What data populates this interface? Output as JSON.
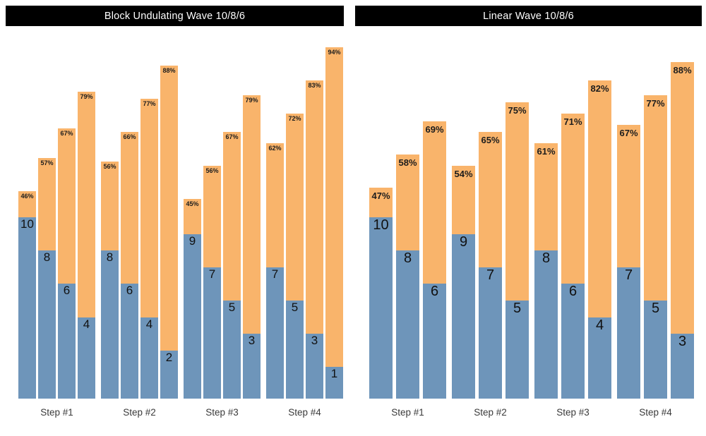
{
  "colors": {
    "reps_blue": "#6e95ba",
    "intensity_orange": "#f9b46b",
    "title_bar_bg": "#000000",
    "title_text": "#ffffff",
    "category_label_gray": "#3a3a3a"
  },
  "chart_data": [
    {
      "type": "bar",
      "subtype": "stacked",
      "title": "Block Undulating Wave 10/8/6",
      "legend_position": "none",
      "grid": false,
      "axes_visible": false,
      "series_names": [
        "reps (blue segment, label inside)",
        "intensity percent (orange segment, label at top)"
      ],
      "categories": [
        "Step #1",
        "Step #2",
        "Step #3",
        "Step #4"
      ],
      "pct_label_suffix": "%",
      "groups": [
        [
          {
            "reps": 10,
            "pct": 46
          },
          {
            "reps": 8,
            "pct": 57
          },
          {
            "reps": 6,
            "pct": 67
          },
          {
            "reps": 4,
            "pct": 79
          }
        ],
        [
          {
            "reps": 8,
            "pct": 56
          },
          {
            "reps": 6,
            "pct": 66
          },
          {
            "reps": 4,
            "pct": 77
          },
          {
            "reps": 2,
            "pct": 88
          }
        ],
        [
          {
            "reps": 9,
            "pct": 45
          },
          {
            "reps": 7,
            "pct": 56
          },
          {
            "reps": 5,
            "pct": 67
          },
          {
            "reps": 3,
            "pct": 79
          }
        ],
        [
          {
            "reps": 7,
            "pct": 62
          },
          {
            "reps": 5,
            "pct": 72
          },
          {
            "reps": 3,
            "pct": 83
          },
          {
            "reps": 1,
            "pct": 94
          }
        ]
      ]
    },
    {
      "type": "bar",
      "subtype": "stacked",
      "title": "Linear Wave 10/8/6",
      "legend_position": "none",
      "grid": false,
      "axes_visible": false,
      "series_names": [
        "reps (blue segment, label inside)",
        "intensity percent (orange segment, label at top)"
      ],
      "categories": [
        "Step #1",
        "Step #2",
        "Step #3",
        "Step #4"
      ],
      "pct_label_suffix": "%",
      "groups": [
        [
          {
            "reps": 10,
            "pct": 47
          },
          {
            "reps": 8,
            "pct": 58
          },
          {
            "reps": 6,
            "pct": 69
          }
        ],
        [
          {
            "reps": 9,
            "pct": 54
          },
          {
            "reps": 7,
            "pct": 65
          },
          {
            "reps": 5,
            "pct": 75
          }
        ],
        [
          {
            "reps": 8,
            "pct": 61
          },
          {
            "reps": 6,
            "pct": 71
          },
          {
            "reps": 4,
            "pct": 82
          }
        ],
        [
          {
            "reps": 7,
            "pct": 67
          },
          {
            "reps": 5,
            "pct": 77
          },
          {
            "reps": 3,
            "pct": 88
          }
        ]
      ]
    }
  ]
}
